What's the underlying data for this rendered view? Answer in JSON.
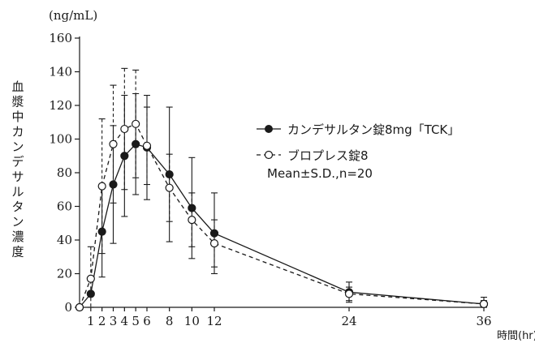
{
  "chart_data": {
    "type": "line",
    "y_unit": "(ng/mL)",
    "ylabel": "血漿中カンデサルタン濃度",
    "xlabel": "時間(hr)",
    "xlim": [
      0,
      36
    ],
    "ylim": [
      0,
      160
    ],
    "xticks": [
      1,
      2,
      3,
      4,
      5,
      6,
      8,
      10,
      12,
      24,
      36
    ],
    "yticks": [
      0,
      20,
      40,
      60,
      80,
      100,
      120,
      140,
      160
    ],
    "legend_placement": "right",
    "legend_note": "Mean±S.D.,n=20",
    "series": [
      {
        "name": "カンデサルタン錠8mg「TCK」",
        "marker": "filled-circle",
        "line": "solid",
        "x": [
          0,
          1,
          2,
          3,
          4,
          5,
          6,
          8,
          10,
          12,
          24,
          36
        ],
        "y": [
          0,
          8,
          45,
          73,
          90,
          97,
          95,
          79,
          59,
          44,
          9,
          2
        ],
        "sd": [
          0,
          0,
          27,
          35,
          36,
          30,
          31,
          40,
          30,
          24,
          6,
          4
        ]
      },
      {
        "name": "ブロプレス錠8",
        "marker": "open-circle",
        "line": "dashed",
        "x": [
          0,
          1,
          2,
          3,
          4,
          5,
          6,
          8,
          10,
          12,
          24,
          36
        ],
        "y": [
          0,
          17,
          72,
          97,
          106,
          109,
          96,
          71,
          52,
          38,
          8,
          2
        ],
        "sd": [
          0,
          19,
          40,
          35,
          36,
          32,
          23,
          20,
          16,
          14,
          4,
          2
        ]
      }
    ]
  }
}
